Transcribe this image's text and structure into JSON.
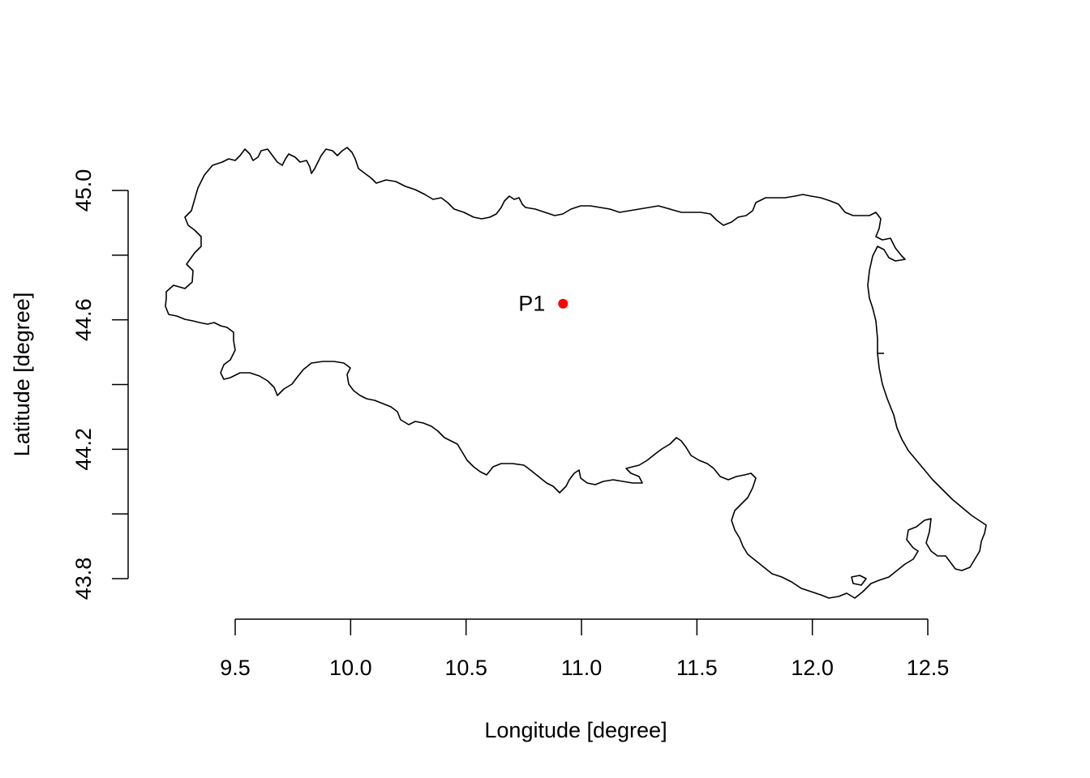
{
  "map": {
    "region_outline_name": "Emilia-Romagna",
    "point_color": "#ff0000",
    "outline_color": "#000000",
    "background": "#ffffff"
  },
  "axes": {
    "x": {
      "label": "Longitude [degree]",
      "range": [
        9.5,
        12.5
      ],
      "ticks": [
        9.5,
        10.0,
        10.5,
        11.0,
        11.5,
        12.0,
        12.5
      ],
      "tick_labels": [
        "9.5",
        "10.0",
        "10.5",
        "11.0",
        "11.5",
        "12.0",
        "12.5"
      ]
    },
    "y": {
      "label": "Latitude [degree]",
      "range": [
        43.8,
        45.0
      ],
      "ticks": [
        43.8,
        44.0,
        44.2,
        44.4,
        44.6,
        44.8,
        45.0
      ],
      "tick_labels": [
        "43.8",
        "",
        "44.2",
        "",
        "44.6",
        "",
        "45.0"
      ]
    }
  },
  "points": [
    {
      "label": "P1",
      "lon": 10.92,
      "lat": 44.65
    }
  ]
}
